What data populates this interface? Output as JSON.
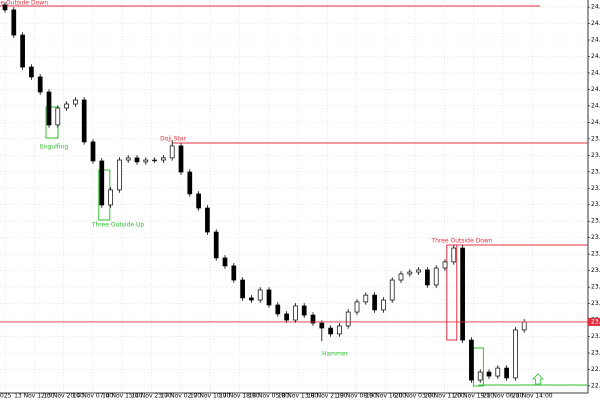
{
  "chart_data": {
    "type": "candlestick",
    "open": [
      24.529,
      24.508,
      24.401,
      24.265,
      24.223,
      24.159,
      24.019,
      24.091,
      24.108,
      24.125,
      23.947,
      23.866,
      23.679,
      23.743,
      23.87,
      23.879,
      23.862,
      23.87,
      23.87,
      23.879,
      23.93,
      23.819,
      23.726,
      23.666,
      23.564,
      23.454,
      23.42,
      23.36,
      23.284,
      23.275,
      23.318,
      23.254,
      23.216,
      23.19,
      23.25,
      23.211,
      23.177,
      23.156,
      23.131,
      23.165,
      23.224,
      23.267,
      23.296,
      23.233,
      23.275,
      23.36,
      23.386,
      23.394,
      23.403,
      23.339,
      23.411,
      23.437,
      23.496,
      23.105,
      22.935,
      22.969,
      22.952,
      22.986,
      22.944,
      23.148
    ],
    "high": [
      24.541,
      24.52,
      24.413,
      24.277,
      24.235,
      24.171,
      24.103,
      24.12,
      24.137,
      24.137,
      23.959,
      23.878,
      23.755,
      23.882,
      23.891,
      23.891,
      23.882,
      23.882,
      23.891,
      23.955,
      23.942,
      23.831,
      23.738,
      23.678,
      23.576,
      23.466,
      23.432,
      23.372,
      23.296,
      23.33,
      23.33,
      23.266,
      23.228,
      23.262,
      23.262,
      23.223,
      23.189,
      23.168,
      23.177,
      23.236,
      23.279,
      23.308,
      23.308,
      23.287,
      23.372,
      23.398,
      23.406,
      23.415,
      23.415,
      23.423,
      23.449,
      23.508,
      23.508,
      23.117,
      22.981,
      22.981,
      22.998,
      22.998,
      23.16,
      23.194
    ],
    "low": [
      24.496,
      24.389,
      24.253,
      24.211,
      24.147,
      24.007,
      24.007,
      24.079,
      24.096,
      23.935,
      23.854,
      23.667,
      23.667,
      23.731,
      23.858,
      23.85,
      23.85,
      23.858,
      23.858,
      23.867,
      23.807,
      23.714,
      23.654,
      23.552,
      23.442,
      23.408,
      23.348,
      23.272,
      23.263,
      23.263,
      23.242,
      23.204,
      23.178,
      23.178,
      23.199,
      23.165,
      23.1,
      23.119,
      23.119,
      23.153,
      23.212,
      23.255,
      23.221,
      23.221,
      23.263,
      23.348,
      23.374,
      23.382,
      23.327,
      23.327,
      23.399,
      23.425,
      23.093,
      22.923,
      22.923,
      22.94,
      22.94,
      22.932,
      22.932,
      23.136
    ],
    "close": [
      24.508,
      24.401,
      24.265,
      24.223,
      24.159,
      24.019,
      24.091,
      24.108,
      24.125,
      23.947,
      23.866,
      23.679,
      23.743,
      23.87,
      23.879,
      23.862,
      23.87,
      23.87,
      23.879,
      23.93,
      23.819,
      23.726,
      23.666,
      23.564,
      23.454,
      23.42,
      23.36,
      23.284,
      23.275,
      23.318,
      23.254,
      23.216,
      23.19,
      23.25,
      23.211,
      23.177,
      23.156,
      23.131,
      23.165,
      23.224,
      23.267,
      23.296,
      23.233,
      23.275,
      23.36,
      23.386,
      23.394,
      23.403,
      23.339,
      23.411,
      23.437,
      23.496,
      23.105,
      22.935,
      22.969,
      22.952,
      22.986,
      22.944,
      23.148,
      23.182
    ],
    "ylim": [
      22.88,
      24.55
    ],
    "yticks": [
      24.52,
      24.45,
      24.38,
      24.31,
      24.24,
      24.17,
      24.1,
      24.03,
      23.96,
      23.89,
      23.82,
      23.75,
      23.68,
      23.61,
      23.54,
      23.47,
      23.4,
      23.33,
      23.26,
      23.19,
      23.12,
      23.05,
      22.98,
      22.91
    ],
    "x_labels": [
      "025",
      "13 Nov 12:00",
      "13 Nov 20:00",
      "14 Nov 07:00",
      "14 Nov 15:00",
      "14 Nov 23:00",
      "17 Nov 02:00",
      "17 Nov 10:00",
      "17 Nov 18:00",
      "18 Nov 05:00",
      "18 Nov 13:00",
      "18 Nov 21:00",
      "19 Nov 08:00",
      "19 Nov 16:00",
      "20 Nov 03:00",
      "20 Nov 11:00",
      "20 Nov 19:00",
      "21 Nov 06:00",
      "21 Nov 14:00"
    ],
    "grid": true,
    "up_color": "#ffffff",
    "down_color": "#000000",
    "annotations": [
      {
        "label": "Three Outside Down",
        "color": "#e03040"
      },
      {
        "label": "Engulfing",
        "color": "#30c030"
      },
      {
        "label": "Three Outside Up",
        "color": "#30c030"
      },
      {
        "label": "Doji Star",
        "color": "#e03040"
      },
      {
        "label": "Hammer",
        "color": "#30c030"
      },
      {
        "label": "Three Outside Down",
        "color": "#e03040"
      },
      {
        "label": "",
        "color": "#30c030"
      }
    ]
  }
}
